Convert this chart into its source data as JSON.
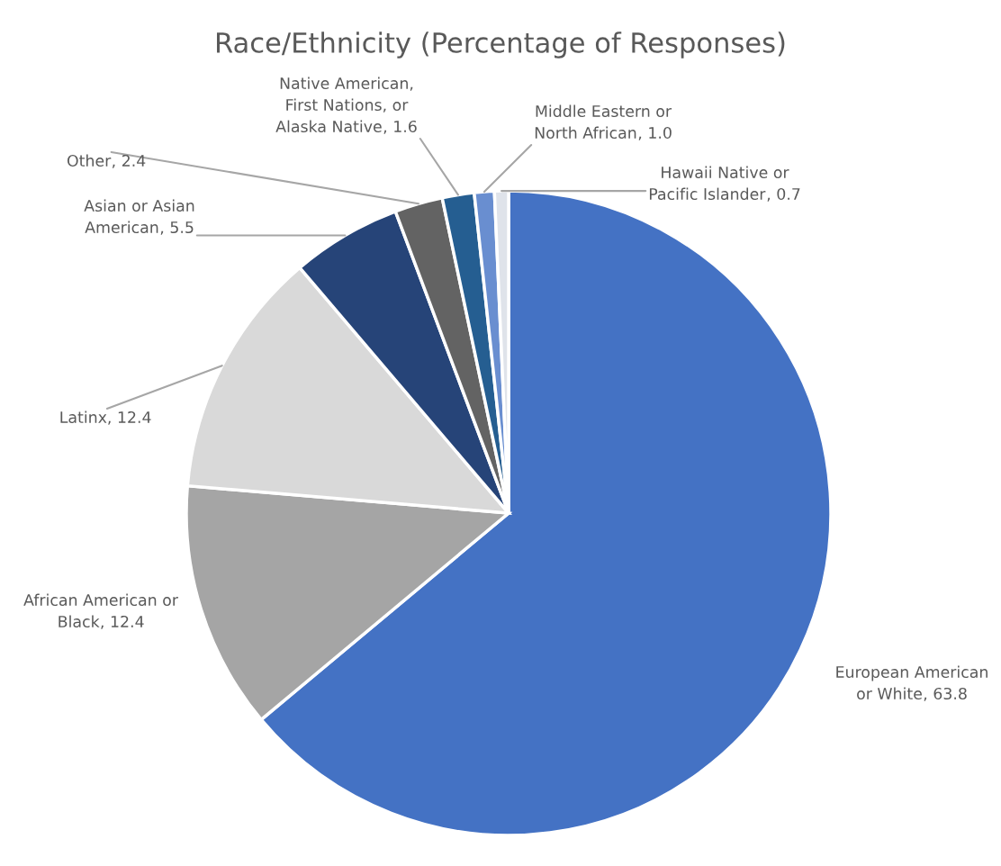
{
  "chart_data": {
    "type": "pie",
    "title": "Race/Ethnicity (Percentage of Responses)",
    "categories": [
      "European American\nor White",
      "African American or\nBlack",
      "Latinx",
      "Asian or Asian\nAmerican",
      "Other",
      "Native American,\nFirst Nations, or\nAlaska Native",
      "Middle Eastern or\nNorth African",
      "Hawaii Native or\nPacific Islander"
    ],
    "values": [
      63.8,
      12.4,
      12.4,
      5.5,
      2.4,
      1.6,
      1.0,
      0.7
    ],
    "value_labels": [
      ", 63.8",
      ", 12.4",
      ", 12.4",
      ", 5.5",
      ", 2.4",
      ", 1.6",
      ", 1.0",
      ", 0.7"
    ],
    "colors": [
      "#4472c4",
      "#a5a5a5",
      "#d9d9d9",
      "#264478",
      "#636363",
      "#255e91",
      "#698ed0",
      "#dfe3ea"
    ]
  }
}
